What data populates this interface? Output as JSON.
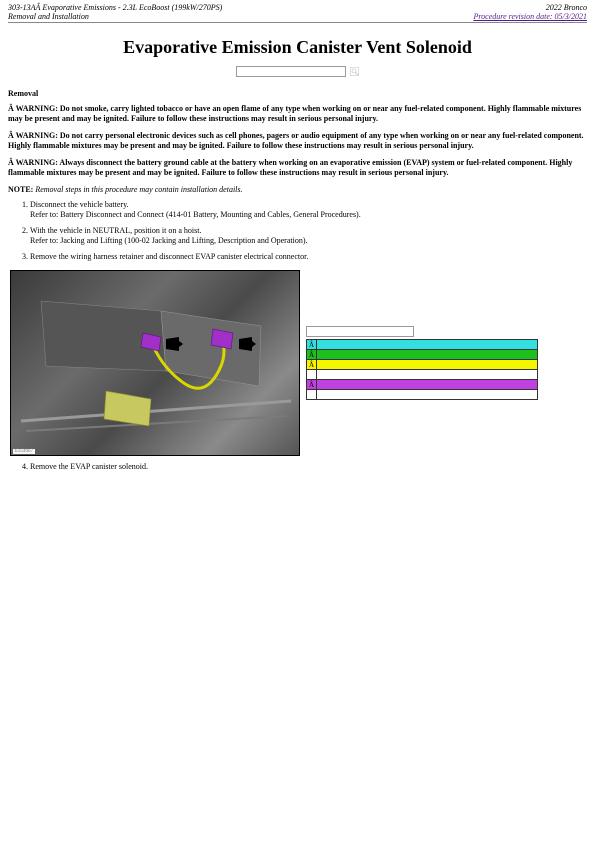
{
  "header": {
    "left1": "303-13AÂ Evaporative Emissions - 2.3L EcoBoost (199kW/270PS)",
    "left2": "Removal and Installation",
    "right1": "2022 Bronco",
    "right2": "Procedure revision date: 05/3/2021"
  },
  "title": "Evaporative Emission Canister Vent Solenoid",
  "search": {
    "placeholder": ""
  },
  "removal_heading": "Removal",
  "warnings": [
    " Â WARNING: Do not smoke, carry lighted tobacco or have an open flame of any type when working on or near any fuel-related component. Highly flammable mixtures may be present and may be ignited. Failure to follow these instructions may result in serious personal injury.",
    " Â WARNING: Do not carry personal electronic devices such as cell phones, pagers or audio equipment of any type when working on or near any fuel-related component. Highly flammable mixtures may be present and may be ignited. Failure to follow these instructions may result in serious personal injury.",
    " Â WARNING: Always disconnect the battery ground cable at the battery when working on an evaporative emission (EVAP) system or fuel-related component. Highly flammable mixtures may be present and may be ignited. Failure to follow these instructions may result in serious personal injury."
  ],
  "note": {
    "label": "NOTE: ",
    "text": "Removal steps in this procedure may contain installation details."
  },
  "steps": [
    {
      "main": "Disconnect the vehicle battery.",
      "sub": "Refer to: Battery Disconnect and Connect (414-01 Battery, Mounting and Cables, General Procedures)."
    },
    {
      "main": "With the vehicle in NEUTRAL, position it on a hoist.",
      "sub": "Refer to: Jacking and Lifting (100-02 Jacking and Lifting, Description and Operation)."
    },
    {
      "main": "Remove the wiring harness retainer and disconnect EVAP canister electrical connector.",
      "sub": ""
    }
  ],
  "figure": {
    "id": "E354667",
    "callouts": {
      "connector1_color": "#a030c8",
      "connector2_color": "#a030c8",
      "wire_color": "#d8d800",
      "plate_color": "#c8c860"
    }
  },
  "legend": {
    "rows": [
      {
        "bg": "#33e0e0",
        "a": "Â",
        "b": ""
      },
      {
        "bg": "#1cbf1c",
        "a": "Â",
        "b": ""
      },
      {
        "bg": "#f5f500",
        "a": "Â",
        "b": ""
      },
      {
        "bg": "#ffffff",
        "a": "",
        "b": ""
      },
      {
        "bg": "#c040e0",
        "a": "Â",
        "b": ""
      },
      {
        "bg": "#ffffff",
        "a": "",
        "b": ""
      }
    ]
  },
  "step4": "Remove the EVAP canister solenoid."
}
